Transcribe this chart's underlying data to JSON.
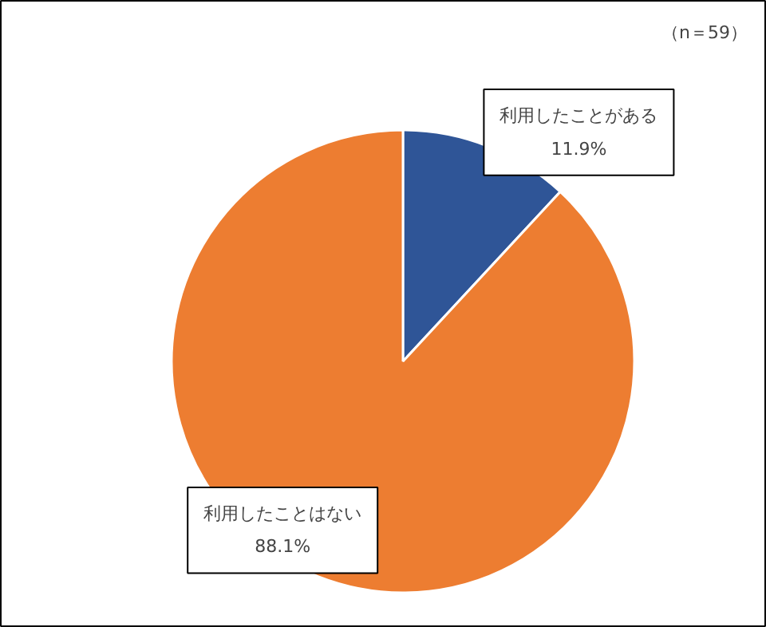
{
  "chart_data": {
    "type": "pie",
    "categories": [
      "利用したことがある",
      "利用したことはない"
    ],
    "values": [
      11.9,
      88.1
    ],
    "colors": [
      "#2f5597",
      "#ed7d31"
    ],
    "value_labels": [
      "11.9%",
      "88.1%"
    ],
    "annotations": [
      "（n＝59）"
    ]
  }
}
